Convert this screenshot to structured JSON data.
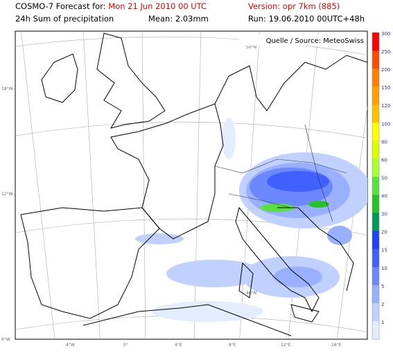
{
  "header": {
    "forecast_label": "COSMO-7 Forecast for:",
    "forecast_date": "Mon 21 Jun 2010 00 UTC",
    "version": "Version: opr 7km (885)",
    "product": "24h Sum of precipitation",
    "mean": "Mean: 2.03mm",
    "run": "Run: 19.06.2010 00UTC+48h"
  },
  "map": {
    "source": "Quelle / Source: MeteoSwiss",
    "lat_labels": [
      "50°N",
      "40°N"
    ],
    "left_labels": [
      "18°W",
      "12°W",
      "6°W"
    ],
    "bottom_labels": [
      "4°W",
      "0°",
      "4°E",
      "8°E",
      "12°E",
      "16°E"
    ]
  },
  "colorbar": {
    "levels": [
      "300",
      "250",
      "200",
      "150",
      "120",
      "100",
      "80",
      "60",
      "50",
      "40",
      "30",
      "20",
      "15",
      "10",
      "5",
      "2",
      "1"
    ],
    "colors": [
      "#ff0000",
      "#ff4a00",
      "#ff8000",
      "#ffa000",
      "#ffc000",
      "#ffff00",
      "#d8ff00",
      "#a8ff30",
      "#58e040",
      "#28c028",
      "#009858",
      "#2040ff",
      "#4060ff",
      "#6c88ff",
      "#98b0ff",
      "#c0d0ff",
      "#e4ecff"
    ]
  }
}
